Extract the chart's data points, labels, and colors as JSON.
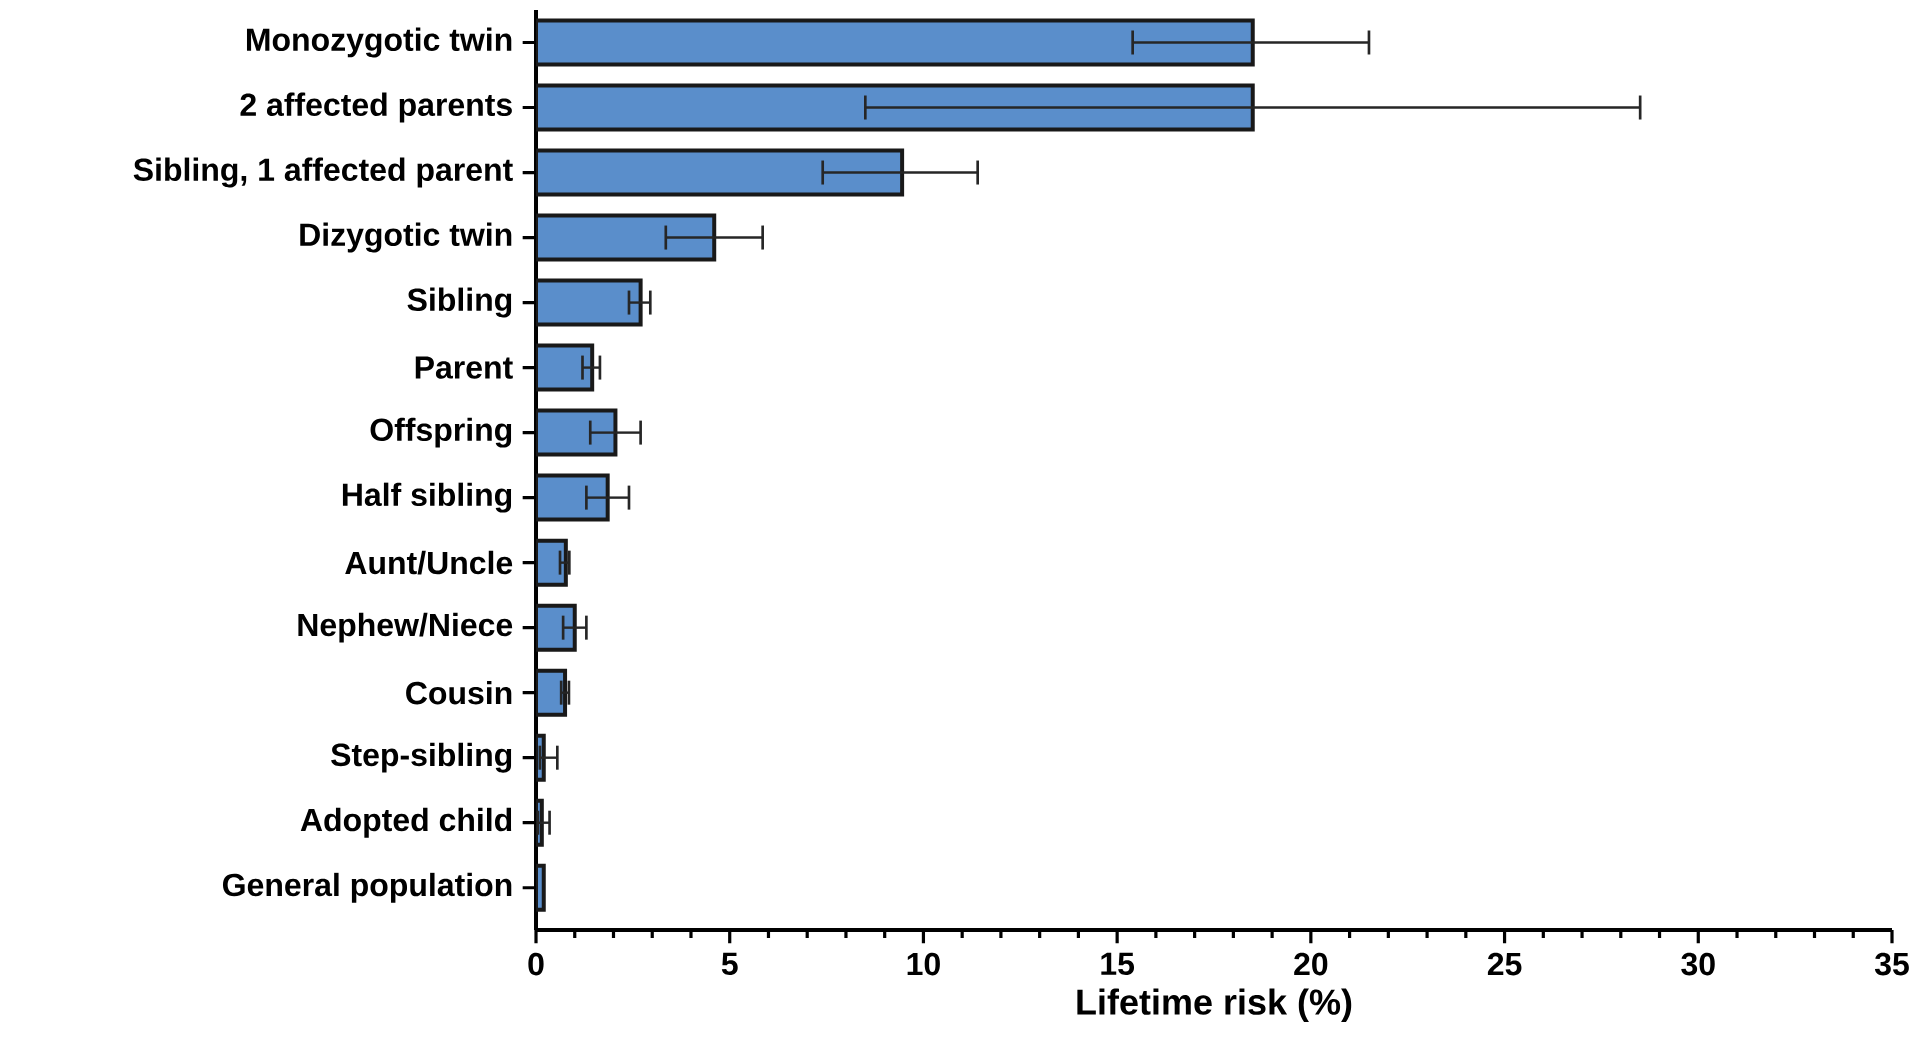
{
  "chart_data": {
    "type": "bar",
    "orientation": "horizontal",
    "xlabel": "Lifetime risk  (%)",
    "categories": [
      "Monozygotic twin",
      "2 affected parents",
      "Sibling, 1 affected parent",
      "Dizygotic twin",
      "Sibling",
      "Parent",
      "Offspring",
      "Half sibling",
      "Aunt/Uncle",
      "Nephew/Niece",
      "Cousin",
      "Step-sibling",
      "Adopted child",
      "General population"
    ],
    "values": [
      18.5,
      18.5,
      9.45,
      4.6,
      2.7,
      1.45,
      2.05,
      1.85,
      0.77,
      1.0,
      0.75,
      0.2,
      0.15,
      0.2
    ],
    "errors": [
      [
        15.4,
        21.5
      ],
      [
        8.5,
        28.5
      ],
      [
        7.4,
        11.4
      ],
      [
        3.35,
        5.85
      ],
      [
        2.4,
        2.95
      ],
      [
        1.2,
        1.65
      ],
      [
        1.4,
        2.7
      ],
      [
        1.3,
        2.4
      ],
      [
        0.62,
        0.86
      ],
      [
        0.7,
        1.3
      ],
      [
        0.65,
        0.85
      ],
      [
        0.1,
        0.55
      ],
      [
        0.05,
        0.35
      ],
      null
    ],
    "color": "#5a8ecb",
    "xlim": [
      0,
      35
    ],
    "xticks": [
      0,
      5,
      10,
      15,
      20,
      25,
      30,
      35
    ],
    "grid": false
  }
}
